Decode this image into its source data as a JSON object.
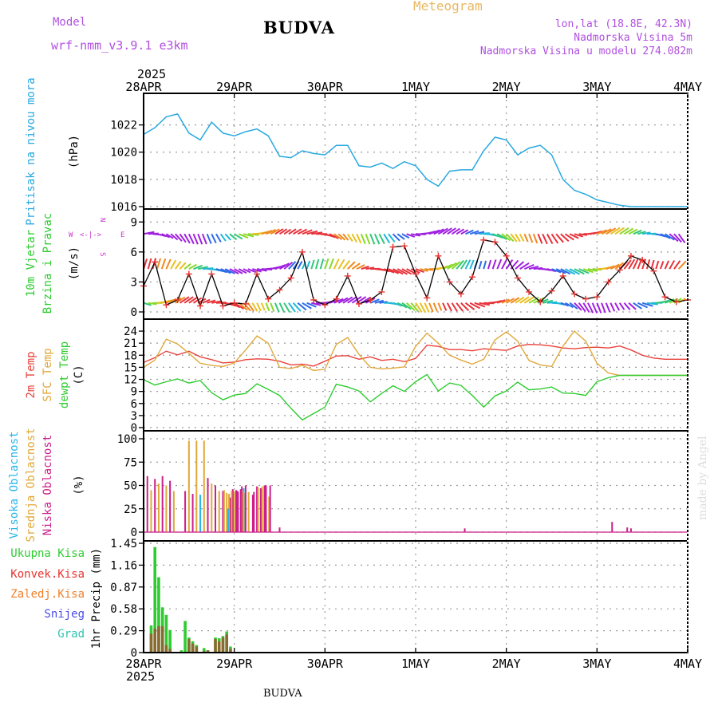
{
  "header": {
    "model_label": "Model",
    "model_name": "wrf-nmm_v3.9.1 e3km",
    "station": "BUDVA",
    "product": "Meteogram",
    "lonlat": "lon,lat (18.8E, 42.3N)",
    "elevation": "Nadmorska Visina 5m",
    "model_elevation": "Nadmorska Visina u modelu 274.082m",
    "year_top": "2025"
  },
  "footer": {
    "year_bottom": "2025",
    "station": "BUDVA",
    "credit": "made by Angel"
  },
  "colors": {
    "pressure": "#29a8e0",
    "wind_speed": "#000000",
    "wind_marker": "#e8322e",
    "temp2m": "#e8423c",
    "sfc_temp": "#e0a83a",
    "dewpt": "#2ecc30",
    "cloud_high": "#29b5e8",
    "cloud_mid": "#e0a83a",
    "cloud_low": "#cc1f8a",
    "precip_total": "#2ecc30",
    "precip_conv": "#e8322e",
    "precip_frozen": "#f07f2a",
    "snow": "#4a4ae8",
    "graupel": "#2ec4b0",
    "compass": "#cc33cc"
  },
  "chart_data": [
    {
      "id": "pressure",
      "type": "line",
      "title": "Pritisak na nivou mora",
      "ylabel": "(hPa)",
      "ylim": [
        1016,
        1023.5
      ],
      "yticks": [
        1016,
        1018,
        1020,
        1022
      ],
      "x_hours": [
        0,
        3,
        6,
        9,
        12,
        15,
        18,
        21,
        24,
        27,
        30,
        33,
        36,
        39,
        42,
        45,
        48,
        51,
        54,
        57,
        60,
        63,
        66,
        69,
        72,
        75,
        78,
        81,
        84,
        87,
        90,
        93,
        96,
        99,
        102,
        105,
        108,
        111,
        114,
        117,
        120,
        123,
        126,
        129,
        132,
        135,
        138,
        141,
        144
      ],
      "values": [
        1021.3,
        1021.8,
        1022.6,
        1022.8,
        1021.4,
        1020.9,
        1022.2,
        1021.4,
        1021.2,
        1021.5,
        1021.7,
        1021.2,
        1019.7,
        1019.6,
        1020.1,
        1019.9,
        1019.8,
        1020.5,
        1020.5,
        1019.0,
        1018.9,
        1019.2,
        1018.8,
        1019.3,
        1019.0,
        1018.0,
        1017.5,
        1018.6,
        1018.7,
        1018.7,
        1020.1,
        1021.1,
        1020.9,
        1019.8,
        1020.3,
        1020.5,
        1019.8,
        1018.0,
        1017.2,
        1016.9,
        1016.5,
        1016.3,
        1016.1,
        1016.0,
        1016.0,
        1016.0,
        1016.0,
        1016.0,
        1016.0
      ]
    },
    {
      "id": "wind",
      "type": "line",
      "title": "10m Vjetar",
      "subtitle": "Brzina i Pravac",
      "ylabel": "(m/s)",
      "compass_labels": [
        "W",
        "<-|->",
        "E",
        "N",
        "S"
      ],
      "ylim": [
        0,
        9.5
      ],
      "yticks": [
        0,
        3,
        6,
        9
      ],
      "x_hours": [
        0,
        3,
        6,
        9,
        12,
        15,
        18,
        21,
        24,
        27,
        30,
        33,
        36,
        39,
        42,
        45,
        48,
        51,
        54,
        57,
        60,
        63,
        66,
        69,
        72,
        75,
        78,
        81,
        84,
        87,
        90,
        93,
        96,
        99,
        102,
        105,
        108,
        111,
        114,
        117,
        120,
        123,
        126,
        129,
        132,
        135,
        138,
        141,
        144
      ],
      "values": [
        2.6,
        5.0,
        0.7,
        1.2,
        3.8,
        0.6,
        3.8,
        0.6,
        0.9,
        0.8,
        3.8,
        1.3,
        2.2,
        3.4,
        6.0,
        1.2,
        0.7,
        1.3,
        3.6,
        0.8,
        1.2,
        2.0,
        6.5,
        6.6,
        3.8,
        1.4,
        5.6,
        3.0,
        1.8,
        3.5,
        7.2,
        7.0,
        5.6,
        3.4,
        2.0,
        1.0,
        2.1,
        3.6,
        1.8,
        1.3,
        1.5,
        3.0,
        4.2,
        5.6,
        5.2,
        4.1,
        1.5,
        1.0,
        1.2
      ],
      "arrow_rows_ms": [
        0.9,
        4.3,
        7.8
      ]
    },
    {
      "id": "temperature",
      "type": "line",
      "series_names": [
        "2m Temp",
        "SFC Temp",
        "dewpt Temp"
      ],
      "ylabel": "(C)",
      "ylim": [
        0,
        25
      ],
      "yticks": [
        0,
        3,
        6,
        9,
        12,
        15,
        18,
        21,
        24
      ],
      "x_hours": [
        0,
        3,
        6,
        9,
        12,
        15,
        18,
        21,
        24,
        27,
        30,
        33,
        36,
        39,
        42,
        45,
        48,
        51,
        54,
        57,
        60,
        63,
        66,
        69,
        72,
        75,
        78,
        81,
        84,
        87,
        90,
        93,
        96,
        99,
        102,
        105,
        108,
        111,
        114,
        117,
        120,
        123,
        126,
        129,
        132,
        135,
        138,
        141,
        144
      ],
      "series": [
        {
          "name": "2m Temp",
          "values": [
            16.2,
            17.4,
            19.0,
            18.1,
            19.0,
            17.6,
            16.9,
            16.1,
            16.3,
            16.9,
            17.1,
            17.0,
            16.5,
            15.6,
            15.8,
            15.3,
            16.5,
            17.8,
            17.9,
            17.0,
            17.6,
            16.7,
            17.0,
            16.4,
            17.2,
            20.5,
            20.2,
            19.4,
            19.4,
            19.1,
            19.6,
            19.4,
            19.2,
            20.3,
            20.7,
            20.6,
            20.3,
            19.8,
            19.6,
            19.9,
            20.0,
            19.8,
            20.3,
            19.3,
            18.0,
            17.3,
            17.0,
            17.0,
            17.0
          ]
        },
        {
          "name": "SFC Temp",
          "values": [
            15.0,
            16.8,
            22.0,
            20.8,
            18.5,
            16.0,
            15.5,
            15.2,
            16.1,
            19.3,
            22.8,
            21.0,
            15.0,
            14.7,
            15.5,
            14.2,
            14.5,
            20.7,
            22.4,
            18.2,
            15.0,
            14.6,
            14.8,
            15.1,
            20.2,
            23.5,
            21.0,
            18.0,
            16.8,
            15.8,
            17.0,
            21.8,
            23.8,
            21.5,
            16.7,
            15.6,
            15.2,
            20.3,
            24.0,
            21.5,
            16.0,
            13.6,
            13.0,
            13.0,
            13.0,
            13.0,
            13.0,
            13.0,
            13.0
          ]
        },
        {
          "name": "dewpt Temp",
          "values": [
            11.9,
            10.6,
            11.4,
            12.1,
            11.1,
            11.7,
            8.7,
            6.9,
            8.1,
            8.5,
            10.9,
            9.5,
            8.0,
            4.8,
            1.9,
            3.5,
            5.1,
            10.8,
            10.1,
            9.1,
            6.4,
            8.5,
            10.4,
            9.0,
            11.4,
            13.2,
            9.1,
            11.1,
            10.5,
            8.0,
            5.1,
            7.9,
            9.1,
            11.3,
            9.4,
            9.6,
            10.1,
            8.6,
            8.5,
            8.0,
            11.4,
            12.4,
            13.0,
            13.0,
            13.0,
            13.0,
            13.0,
            13.0,
            13.0
          ]
        }
      ]
    },
    {
      "id": "cloud",
      "type": "bar",
      "series_names": [
        "Visoka Oblacnost",
        "Srednja Oblacnost",
        "Niska Oblacnost"
      ],
      "ylabel": "(%)",
      "ylim": [
        0,
        100
      ],
      "yticks": [
        0,
        25,
        50,
        75,
        100
      ],
      "bars": [
        {
          "h": 1,
          "s": "low",
          "v": 60
        },
        {
          "h": 2,
          "s": "mid",
          "v": 45
        },
        {
          "h": 3,
          "s": "low",
          "v": 57
        },
        {
          "h": 4,
          "s": "mid",
          "v": 52
        },
        {
          "h": 5,
          "s": "low",
          "v": 60
        },
        {
          "h": 6,
          "s": "mid",
          "v": 50
        },
        {
          "h": 7,
          "s": "low",
          "v": 55
        },
        {
          "h": 8,
          "s": "mid",
          "v": 44
        },
        {
          "h": 11,
          "s": "low",
          "v": 44
        },
        {
          "h": 12,
          "s": "mid",
          "v": 98
        },
        {
          "h": 13,
          "s": "low",
          "v": 41
        },
        {
          "h": 14,
          "s": "mid",
          "v": 98
        },
        {
          "h": 15,
          "s": "high",
          "v": 40
        },
        {
          "h": 16,
          "s": "mid",
          "v": 98
        },
        {
          "h": 17,
          "s": "low",
          "v": 58
        },
        {
          "h": 18,
          "s": "mid",
          "v": 52
        },
        {
          "h": 19,
          "s": "low",
          "v": 50
        },
        {
          "h": 20,
          "s": "mid",
          "v": 44
        },
        {
          "h": 21,
          "s": "low",
          "v": 44
        },
        {
          "h": 22,
          "s": "mid",
          "v": 42
        },
        {
          "h": 23,
          "s": "low",
          "v": 37
        },
        {
          "h": 24,
          "s": "mid",
          "v": 44
        },
        {
          "h": 26,
          "s": "low",
          "v": 49
        },
        {
          "h": 26.5,
          "s": "high",
          "v": 47
        },
        {
          "h": 26.9,
          "s": "mid",
          "v": 42
        },
        {
          "h": 22.6,
          "s": "mid",
          "v": 41
        },
        {
          "h": 25,
          "s": "low",
          "v": 43
        },
        {
          "h": 26,
          "s": "mid",
          "v": 42
        },
        {
          "h": 24.5,
          "s": "low",
          "v": 45
        },
        {
          "h": 23.6,
          "s": "low",
          "v": 46
        },
        {
          "h": 22.4,
          "s": "high",
          "v": 25
        },
        {
          "h": 27,
          "s": "low",
          "v": 50
        },
        {
          "h": 26.2,
          "s": "mid",
          "v": 44
        },
        {
          "h": 30,
          "s": "low",
          "v": 49
        },
        {
          "h": 32,
          "s": "low",
          "v": 50
        },
        {
          "h": 26.2,
          "s": "low",
          "v": 43
        },
        {
          "h": 26.4,
          "s": "mid",
          "v": 44
        },
        {
          "h": 30.3,
          "s": "mid",
          "v": 48
        },
        {
          "h": 32.4,
          "s": "low",
          "v": 50
        },
        {
          "h": 31.4,
          "s": "mid",
          "v": 49
        },
        {
          "h": 33.2,
          "s": "mid",
          "v": 38
        },
        {
          "h": 25.7,
          "s": "low",
          "v": 46
        },
        {
          "h": 24.9,
          "s": "low",
          "v": 44
        },
        {
          "h": 28.9,
          "s": "low",
          "v": 40
        },
        {
          "h": 21.3,
          "s": "mid",
          "v": 45
        },
        {
          "h": 29.2,
          "s": "low",
          "v": 43
        },
        {
          "h": 23.3,
          "s": "mid",
          "v": 44
        },
        {
          "h": 27.8,
          "s": "mid",
          "v": 43
        },
        {
          "h": 31.0,
          "s": "low",
          "v": 47
        },
        {
          "h": 33.5,
          "s": "low",
          "v": 50
        },
        {
          "h": 36,
          "s": "low",
          "v": 5
        },
        {
          "h": 85,
          "s": "low",
          "v": 4
        },
        {
          "h": 124,
          "s": "low",
          "v": 11
        },
        {
          "h": 128,
          "s": "low",
          "v": 5
        },
        {
          "h": 129,
          "s": "low",
          "v": 4
        }
      ]
    },
    {
      "id": "precip",
      "type": "bar",
      "series_names": [
        "Ukupna Kisa",
        "Konvek.Kisa",
        "Zaledj.Kisa",
        "Snijeg",
        "Grad"
      ],
      "ylabel": "1hr Precip (mm)",
      "ylim": [
        0,
        1.45
      ],
      "yticks": [
        0,
        0.29,
        0.58,
        0.87,
        1.16,
        1.45
      ],
      "ytick_labels": [
        "0",
        "0.29",
        "0.58",
        "0.87",
        "1.16",
        "1.45"
      ],
      "x_range_hours": [
        0,
        144
      ],
      "x_tick_labels": [
        "28APR",
        "29APR",
        "30APR",
        "1MAY",
        "2MAY",
        "3MAY",
        "4MAY"
      ],
      "bars": [
        {
          "h": 2,
          "total": 0.36,
          "conv": 0.25
        },
        {
          "h": 3,
          "total": 1.4,
          "conv": 0.32
        },
        {
          "h": 4,
          "total": 1.0,
          "conv": 0.35
        },
        {
          "h": 5,
          "total": 0.6,
          "conv": 0.35
        },
        {
          "h": 6,
          "total": 0.5,
          "conv": 0.1
        },
        {
          "h": 7,
          "total": 0.3,
          "conv": 0.05
        },
        {
          "h": 10,
          "total": 0.03,
          "conv": 0.0
        },
        {
          "h": 11,
          "total": 0.42,
          "conv": 0.0
        },
        {
          "h": 12,
          "total": 0.2,
          "conv": 0.18
        },
        {
          "h": 13,
          "total": 0.15,
          "conv": 0.12
        },
        {
          "h": 14,
          "total": 0.1,
          "conv": 0.08
        },
        {
          "h": 16,
          "total": 0.06,
          "conv": 0.02
        },
        {
          "h": 17,
          "total": 0.03,
          "conv": 0.03
        },
        {
          "h": 19,
          "total": 0.2,
          "conv": 0.18
        },
        {
          "h": 20,
          "total": 0.19,
          "conv": 0.15
        },
        {
          "h": 21,
          "total": 0.22,
          "conv": 0.2
        },
        {
          "h": 22,
          "total": 0.28,
          "conv": 0.24
        },
        {
          "h": 23,
          "total": 0.08,
          "conv": 0.05
        }
      ]
    }
  ]
}
